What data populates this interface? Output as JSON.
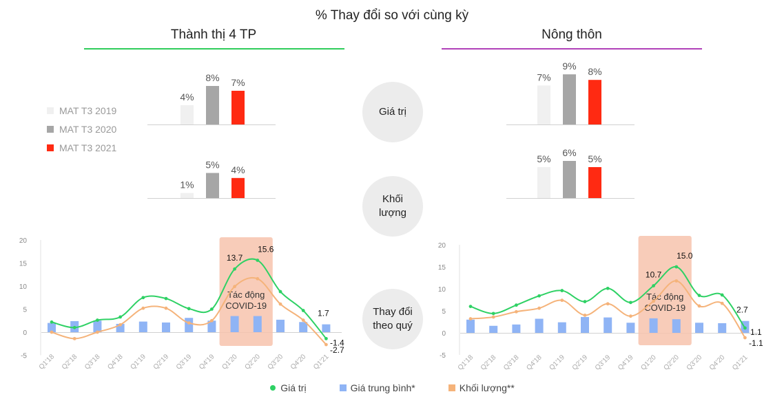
{
  "title": "% Thay đổi so với cùng kỳ",
  "regions": [
    {
      "title": "Thành thị 4 TP",
      "line_color": "#2ecc5a"
    },
    {
      "title": "Nông thôn",
      "line_color": "#b040b8"
    }
  ],
  "row_labels": {
    "value": "Giá trị",
    "volume": [
      "Khối",
      "lượng"
    ],
    "quarterly": [
      "Thay đổi",
      "theo quý"
    ]
  },
  "mat_legend": [
    {
      "label": "MAT T3 2019",
      "color": "#f0f0f0"
    },
    {
      "label": "MAT T3 2020",
      "color": "#a6a6a6"
    },
    {
      "label": "MAT T3 2021",
      "color": "#ff2a12"
    }
  ],
  "covid_label": [
    "Tác động",
    "COVID-19"
  ],
  "bottom_legend": [
    {
      "label": "Giá trị",
      "color": "#2ed164",
      "shape": "dot"
    },
    {
      "label": "Giá trung bình*",
      "color": "#8fb4f5",
      "shape": "square"
    },
    {
      "label": "Khối lượng**",
      "color": "#f5b37a",
      "shape": "square"
    }
  ],
  "chart_data": [
    {
      "type": "bar",
      "panel": "Thành thị 4 TP - Giá trị",
      "categories": [
        "MAT T3 2019",
        "MAT T3 2020",
        "MAT T3 2021"
      ],
      "values": [
        4,
        8,
        7
      ],
      "labels": [
        "4%",
        "8%",
        "7%"
      ]
    },
    {
      "type": "bar",
      "panel": "Thành thị 4 TP - Khối lượng",
      "categories": [
        "MAT T3 2019",
        "MAT T3 2020",
        "MAT T3 2021"
      ],
      "values": [
        1,
        5,
        4
      ],
      "labels": [
        "1%",
        "5%",
        "4%"
      ]
    },
    {
      "type": "bar",
      "panel": "Nông thôn - Giá trị",
      "categories": [
        "MAT T3 2019",
        "MAT T3 2020",
        "MAT T3 2021"
      ],
      "values": [
        7,
        9,
        8
      ],
      "labels": [
        "7%",
        "9%",
        "8%"
      ]
    },
    {
      "type": "bar",
      "panel": "Nông thôn - Khối lượng",
      "categories": [
        "MAT T3 2019",
        "MAT T3 2020",
        "MAT T3 2021"
      ],
      "values": [
        5,
        6,
        5
      ],
      "labels": [
        "5%",
        "6%",
        "5%"
      ]
    },
    {
      "type": "line",
      "panel": "Thành thị 4 TP - Thay đổi theo quý",
      "categories": [
        "Q1'18",
        "Q2'18",
        "Q3'18",
        "Q4'18",
        "Q1'19",
        "Q2'19",
        "Q3'19",
        "Q4'19",
        "Q1'20",
        "Q2'20",
        "Q3'20",
        "Q4'20",
        "Q1'21"
      ],
      "ylim": [
        -5,
        20
      ],
      "yticks": [
        -5,
        0,
        5,
        10,
        15,
        20
      ],
      "covid_range": [
        "Q1'20",
        "Q2'20"
      ],
      "series": [
        {
          "name": "Giá trị",
          "type": "line",
          "values": [
            2.2,
            1.0,
            2.6,
            3.3,
            7.5,
            7.3,
            5.1,
            5.0,
            13.7,
            15.6,
            8.8,
            4.7,
            -1.4
          ]
        },
        {
          "name": "Giá trung bình*",
          "type": "bar",
          "values": [
            2.0,
            2.4,
            2.5,
            1.8,
            2.3,
            2.1,
            3.1,
            2.5,
            3.5,
            3.5,
            2.7,
            2.2,
            1.7
          ]
        },
        {
          "name": "Khối lượng**",
          "type": "line",
          "values": [
            0.0,
            -1.4,
            0.0,
            1.6,
            5.2,
            5.2,
            2.0,
            2.5,
            9.9,
            11.6,
            6.1,
            2.6,
            -2.7
          ]
        }
      ],
      "data_labels": [
        {
          "series": 0,
          "index": 8,
          "text": "13.7"
        },
        {
          "series": 0,
          "index": 9,
          "text": "15.6"
        },
        {
          "series": 1,
          "index": 12,
          "text": "1.7"
        },
        {
          "series": 0,
          "index": 12,
          "text": "-1.4"
        },
        {
          "series": 2,
          "index": 12,
          "text": "-2.7"
        }
      ]
    },
    {
      "type": "line",
      "panel": "Nông thôn - Thay đổi theo quý",
      "categories": [
        "Q1'18",
        "Q2'18",
        "Q3'18",
        "Q4'18",
        "Q1'19",
        "Q2'19",
        "Q3'19",
        "Q4'19",
        "Q1'20",
        "Q2'20",
        "Q3'20",
        "Q4'20",
        "Q1'21"
      ],
      "ylim": [
        -5,
        20
      ],
      "yticks": [
        -5,
        0,
        5,
        10,
        15,
        20
      ],
      "covid_range": [
        "Q1'20",
        "Q2'20"
      ],
      "series": [
        {
          "name": "Giá trị",
          "type": "line",
          "values": [
            6.0,
            4.4,
            6.3,
            8.4,
            9.6,
            7.1,
            10.1,
            6.9,
            10.7,
            15.0,
            8.5,
            8.6,
            1.1
          ]
        },
        {
          "name": "Giá trung bình*",
          "type": "bar",
          "values": [
            3.0,
            1.6,
            1.9,
            3.2,
            2.4,
            3.6,
            3.5,
            2.3,
            3.3,
            3.1,
            2.3,
            2.2,
            2.7
          ]
        },
        {
          "name": "Khối lượng**",
          "type": "line",
          "values": [
            3.2,
            3.6,
            4.8,
            5.6,
            7.4,
            4.0,
            6.6,
            3.8,
            7.2,
            11.8,
            6.1,
            6.7,
            -1.1
          ]
        }
      ],
      "data_labels": [
        {
          "series": 0,
          "index": 8,
          "text": "10.7"
        },
        {
          "series": 0,
          "index": 9,
          "text": "15.0"
        },
        {
          "series": 1,
          "index": 12,
          "text": "2.7"
        },
        {
          "series": 0,
          "index": 12,
          "text": "1.1"
        },
        {
          "series": 2,
          "index": 12,
          "text": "-1.1"
        }
      ]
    }
  ]
}
